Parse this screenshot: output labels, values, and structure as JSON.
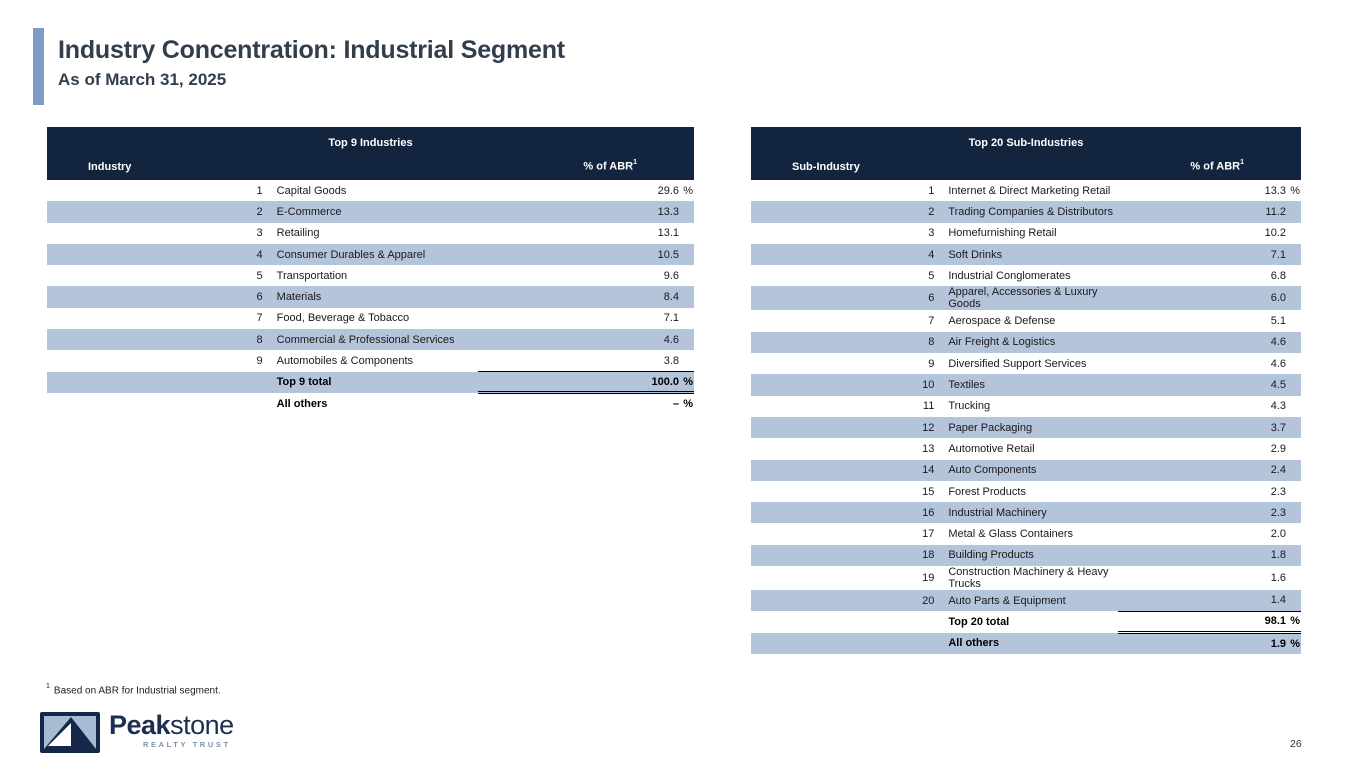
{
  "header": {
    "title": "Industry Concentration: Industrial Segment",
    "subtitle": "As of March 31, 2025"
  },
  "colors": {
    "navy_header": "#13243F",
    "row_alt_blue": "#B4C4DA",
    "accent_bar_blue": "#7E9CC5",
    "title_text": "#333E4D",
    "brand_navy": "#1D2E50",
    "tagline_gray_blue": "#7D8FA8"
  },
  "tables": {
    "left": {
      "title": "Top 9 Industries",
      "col1": "Industry",
      "col2": "% of ABR",
      "col2_sup": "1",
      "rows": [
        {
          "rank": "1",
          "name": "Capital Goods",
          "value": "29.6",
          "suffix": "%"
        },
        {
          "rank": "2",
          "name": "E-Commerce",
          "value": "13.3",
          "suffix": ""
        },
        {
          "rank": "3",
          "name": "Retailing",
          "value": "13.1",
          "suffix": ""
        },
        {
          "rank": "4",
          "name": "Consumer Durables & Apparel",
          "value": "10.5",
          "suffix": ""
        },
        {
          "rank": "5",
          "name": "Transportation",
          "value": "9.6",
          "suffix": ""
        },
        {
          "rank": "6",
          "name": "Materials",
          "value": "8.4",
          "suffix": ""
        },
        {
          "rank": "7",
          "name": "Food, Beverage & Tobacco",
          "value": "7.1",
          "suffix": ""
        },
        {
          "rank": "8",
          "name": "Commercial & Professional Services",
          "value": "4.6",
          "suffix": ""
        },
        {
          "rank": "9",
          "name": "Automobiles & Components",
          "value": "3.8",
          "suffix": ""
        }
      ],
      "total_label": "Top 9 total",
      "total_value": "100.0",
      "total_suffix": "%",
      "others_label": "All others",
      "others_value": "–",
      "others_suffix": "%"
    },
    "right": {
      "title": "Top 20 Sub-Industries",
      "col1": "Sub-Industry",
      "col2": "% of ABR",
      "col2_sup": "1",
      "rows": [
        {
          "rank": "1",
          "name": "Internet & Direct Marketing Retail",
          "value": "13.3",
          "suffix": "%"
        },
        {
          "rank": "2",
          "name": "Trading Companies & Distributors",
          "value": "11.2",
          "suffix": ""
        },
        {
          "rank": "3",
          "name": "Homefurnishing Retail",
          "value": "10.2",
          "suffix": ""
        },
        {
          "rank": "4",
          "name": "Soft Drinks",
          "value": "7.1",
          "suffix": ""
        },
        {
          "rank": "5",
          "name": "Industrial Conglomerates",
          "value": "6.8",
          "suffix": ""
        },
        {
          "rank": "6",
          "name": "Apparel, Accessories & Luxury Goods",
          "value": "6.0",
          "suffix": ""
        },
        {
          "rank": "7",
          "name": "Aerospace & Defense",
          "value": "5.1",
          "suffix": ""
        },
        {
          "rank": "8",
          "name": "Air Freight & Logistics",
          "value": "4.6",
          "suffix": ""
        },
        {
          "rank": "9",
          "name": "Diversified Support Services",
          "value": "4.6",
          "suffix": ""
        },
        {
          "rank": "10",
          "name": "Textiles",
          "value": "4.5",
          "suffix": ""
        },
        {
          "rank": "11",
          "name": "Trucking",
          "value": "4.3",
          "suffix": ""
        },
        {
          "rank": "12",
          "name": "Paper Packaging",
          "value": "3.7",
          "suffix": ""
        },
        {
          "rank": "13",
          "name": "Automotive Retail",
          "value": "2.9",
          "suffix": ""
        },
        {
          "rank": "14",
          "name": "Auto Components",
          "value": "2.4",
          "suffix": ""
        },
        {
          "rank": "15",
          "name": "Forest Products",
          "value": "2.3",
          "suffix": ""
        },
        {
          "rank": "16",
          "name": "Industrial Machinery",
          "value": "2.3",
          "suffix": ""
        },
        {
          "rank": "17",
          "name": "Metal & Glass Containers",
          "value": "2.0",
          "suffix": ""
        },
        {
          "rank": "18",
          "name": "Building Products",
          "value": "1.8",
          "suffix": ""
        },
        {
          "rank": "19",
          "name": "Construction Machinery & Heavy Trucks",
          "value": "1.6",
          "suffix": ""
        },
        {
          "rank": "20",
          "name": "Auto Parts & Equipment",
          "value": "1.4",
          "suffix": ""
        }
      ],
      "total_label": "Top 20 total",
      "total_value": "98.1",
      "total_suffix": "%",
      "others_label": "All others",
      "others_value": "1.9",
      "others_suffix": "%"
    }
  },
  "footnote": {
    "sup": "1",
    "text": "Based on ABR for Industrial segment."
  },
  "logo": {
    "brand_bold": "Peak",
    "brand_light": "stone",
    "tagline": "REALTY TRUST"
  },
  "page_number": "26"
}
